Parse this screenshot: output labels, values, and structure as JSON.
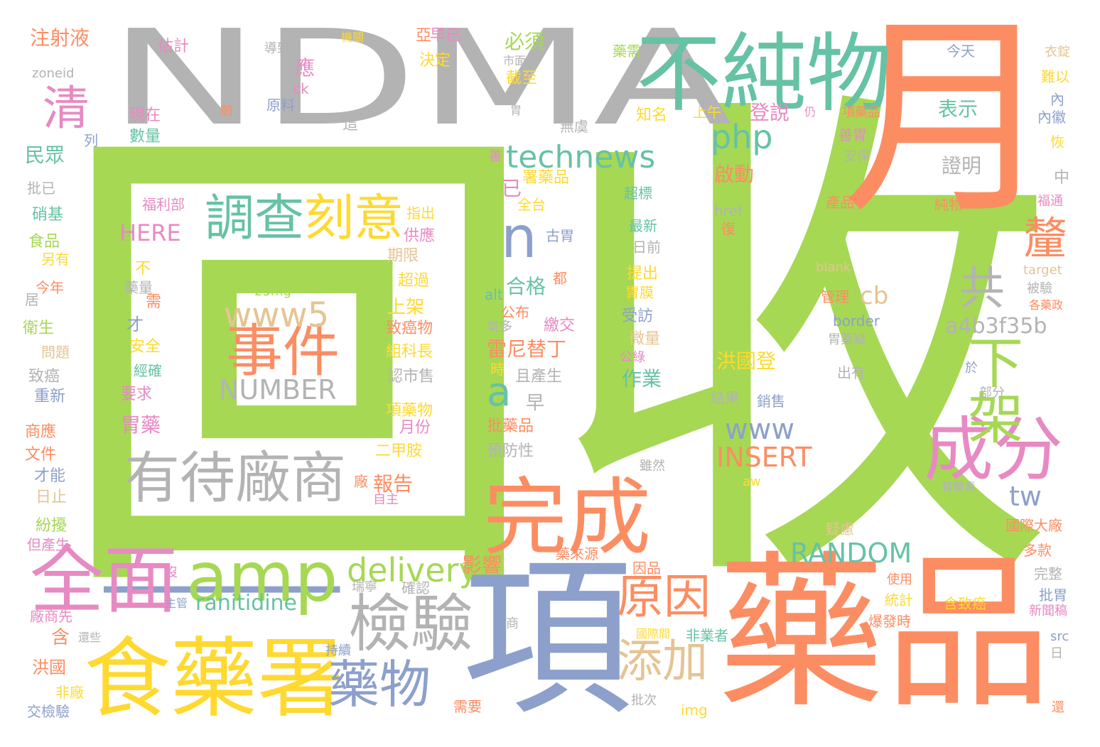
{
  "palette": {
    "green": "#a6d854",
    "gray": "#b3b3b3",
    "orange": "#fc8d62",
    "teal": "#66c2a5",
    "blue": "#8da0cb",
    "pink": "#e78ac3",
    "yellow": "#ffd92f",
    "tan": "#e5c494"
  },
  "words": [
    {
      "text": "回",
      "color": "green"
    },
    {
      "text": "收",
      "color": "green"
    },
    {
      "text": "NDMA",
      "color": "gray"
    },
    {
      "text": "月",
      "color": "orange"
    },
    {
      "text": "藥品",
      "color": "orange"
    },
    {
      "text": "項",
      "color": "blue"
    },
    {
      "text": "一",
      "color": "blue"
    },
    {
      "text": "不純物",
      "color": "teal"
    },
    {
      "text": "食藥署",
      "color": "yellow"
    },
    {
      "text": "完成",
      "color": "orange"
    },
    {
      "text": "amp",
      "color": "green"
    },
    {
      "text": "全面",
      "color": "pink"
    },
    {
      "text": "有待廠商",
      "color": "gray"
    },
    {
      "text": "成分",
      "color": "pink"
    },
    {
      "text": "檢驗",
      "color": "gray"
    },
    {
      "text": "藥物",
      "color": "blue"
    },
    {
      "text": "調查",
      "color": "teal"
    },
    {
      "text": "刻意",
      "color": "yellow"
    },
    {
      "text": "下架",
      "color": "green"
    },
    {
      "text": "事件",
      "color": "orange"
    },
    {
      "text": "www5",
      "color": "tan"
    },
    {
      "text": "technews",
      "color": "teal"
    },
    {
      "text": "n",
      "color": "blue"
    },
    {
      "text": "原因",
      "color": "orange"
    },
    {
      "text": "添加",
      "color": "tan"
    },
    {
      "text": "清",
      "color": "pink"
    },
    {
      "text": "共",
      "color": "gray"
    },
    {
      "text": "釐",
      "color": "orange"
    },
    {
      "text": "a",
      "color": "teal"
    },
    {
      "text": "delivery",
      "color": "green"
    },
    {
      "text": "php",
      "color": "teal"
    },
    {
      "text": "NUMBER",
      "color": "gray"
    },
    {
      "text": "RANDOM",
      "color": "teal"
    },
    {
      "text": "INSERT",
      "color": "orange"
    },
    {
      "text": "a4b3f35b",
      "color": "gray"
    },
    {
      "text": "www",
      "color": "blue"
    },
    {
      "text": "ranitidine",
      "color": "teal"
    },
    {
      "text": "HERE",
      "color": "pink"
    },
    {
      "text": "tw",
      "color": "blue"
    },
    {
      "text": "cb",
      "color": "tan"
    },
    {
      "text": "注射液",
      "color": "orange"
    },
    {
      "text": "雷尼替丁",
      "color": "orange"
    },
    {
      "text": "合格",
      "color": "teal"
    },
    {
      "text": "必須",
      "color": "green"
    },
    {
      "text": "登說",
      "color": "pink"
    },
    {
      "text": "啟動",
      "color": "orange"
    },
    {
      "text": "表示",
      "color": "teal"
    },
    {
      "text": "證明",
      "color": "gray"
    },
    {
      "text": "洪國登",
      "color": "yellow"
    },
    {
      "text": "影響",
      "color": "orange"
    },
    {
      "text": "作業",
      "color": "teal"
    },
    {
      "text": "報告",
      "color": "orange"
    },
    {
      "text": "胃藥",
      "color": "pink"
    },
    {
      "text": "上架",
      "color": "yellow"
    },
    {
      "text": "民眾",
      "color": "teal"
    },
    {
      "text": "估計",
      "color": "pink"
    },
    {
      "text": "zoneid",
      "color": "gray"
    },
    {
      "text": "現在",
      "color": "pink"
    },
    {
      "text": "數量",
      "color": "teal"
    },
    {
      "text": "批已",
      "color": "gray"
    },
    {
      "text": "硝基",
      "color": "teal"
    },
    {
      "text": "食品",
      "color": "green"
    },
    {
      "text": "另有",
      "color": "yellow"
    },
    {
      "text": "今年",
      "color": "orange"
    },
    {
      "text": "居",
      "color": "gray"
    },
    {
      "text": "衛生",
      "color": "green"
    },
    {
      "text": "問題",
      "color": "tan"
    },
    {
      "text": "致癌",
      "color": "gray"
    },
    {
      "text": "重新",
      "color": "blue"
    },
    {
      "text": "商應",
      "color": "orange"
    },
    {
      "text": "文件",
      "color": "orange"
    },
    {
      "text": "才能",
      "color": "blue"
    },
    {
      "text": "日止",
      "color": "tan"
    },
    {
      "text": "紛擾",
      "color": "green"
    },
    {
      "text": "但產生",
      "color": "pink"
    },
    {
      "text": "廠商先",
      "color": "pink"
    },
    {
      "text": "含",
      "color": "orange"
    },
    {
      "text": "洪國",
      "color": "orange"
    },
    {
      "text": "非廠",
      "color": "yellow"
    },
    {
      "text": "交檢驗",
      "color": "blue"
    },
    {
      "text": "列",
      "color": "blue"
    },
    {
      "text": "福利部",
      "color": "pink"
    },
    {
      "text": "導致",
      "color": "gray"
    },
    {
      "text": "應",
      "color": "pink"
    },
    {
      "text": "ck",
      "color": "pink"
    },
    {
      "text": "原料",
      "color": "blue"
    },
    {
      "text": "這",
      "color": "gray"
    },
    {
      "text": "前",
      "color": "orange"
    },
    {
      "text": "機關",
      "color": "yellow"
    },
    {
      "text": "亞",
      "color": "orange"
    },
    {
      "text": "早已",
      "color": "pink"
    },
    {
      "text": "決定",
      "color": "yellow"
    },
    {
      "text": "截至",
      "color": "yellow"
    },
    {
      "text": "無虞",
      "color": "gray"
    },
    {
      "text": "胃",
      "color": "gray"
    },
    {
      "text": "市面上",
      "color": "gray"
    },
    {
      "text": "已",
      "color": "pink"
    },
    {
      "text": "署藥品",
      "color": "yellow"
    },
    {
      "text": "全台",
      "color": "yellow"
    },
    {
      "text": "指出",
      "color": "yellow"
    },
    {
      "text": "供應",
      "color": "pink"
    },
    {
      "text": "期限",
      "color": "tan"
    },
    {
      "text": "超過",
      "color": "yellow"
    },
    {
      "text": "致癌物",
      "color": "orange"
    },
    {
      "text": "組科長",
      "color": "yellow"
    },
    {
      "text": "認市售",
      "color": "gray"
    },
    {
      "text": "項藥物",
      "color": "yellow"
    },
    {
      "text": "月份",
      "color": "pink"
    },
    {
      "text": "二甲胺",
      "color": "yellow"
    },
    {
      "text": "廠",
      "color": "orange"
    },
    {
      "text": "自主",
      "color": "pink"
    },
    {
      "text": "早",
      "color": "gray"
    },
    {
      "text": "批藥品",
      "color": "orange"
    },
    {
      "text": "預防性",
      "color": "gray"
    },
    {
      "text": "古胃",
      "color": "blue"
    },
    {
      "text": "都",
      "color": "orange"
    },
    {
      "text": "alt",
      "color": "teal"
    },
    {
      "text": "公布",
      "color": "orange"
    },
    {
      "text": "氣多",
      "color": "gray"
    },
    {
      "text": "繳交",
      "color": "pink"
    },
    {
      "text": "時",
      "color": "yellow"
    },
    {
      "text": "且產生",
      "color": "gray"
    },
    {
      "text": "不",
      "color": "yellow"
    },
    {
      "text": "藥量",
      "color": "gray"
    },
    {
      "text": "需",
      "color": "orange"
    },
    {
      "text": "才",
      "color": "blue"
    },
    {
      "text": "安全",
      "color": "yellow"
    },
    {
      "text": "經確",
      "color": "teal"
    },
    {
      "text": "要求",
      "color": "pink"
    },
    {
      "text": "25mg",
      "color": "green"
    },
    {
      "text": "沒",
      "color": "pink"
    },
    {
      "text": "瑞寧",
      "color": "gray"
    },
    {
      "text": "確認",
      "color": "gray"
    },
    {
      "text": "主管",
      "color": "blue"
    },
    {
      "text": "還些",
      "color": "gray"
    },
    {
      "text": "持續",
      "color": "blue"
    },
    {
      "text": "需要",
      "color": "orange"
    },
    {
      "text": "商",
      "color": "gray"
    },
    {
      "text": "藥來源",
      "color": "orange"
    },
    {
      "text": "因品",
      "color": "orange"
    },
    {
      "text": "國際間",
      "color": "yellow"
    },
    {
      "text": "非業者",
      "color": "teal"
    },
    {
      "text": "批次",
      "color": "gray"
    },
    {
      "text": "img",
      "color": "yellow"
    },
    {
      "text": "雖然",
      "color": "gray"
    },
    {
      "text": "aw",
      "color": "yellow"
    },
    {
      "text": "藥需",
      "color": "green"
    },
    {
      "text": "知名",
      "color": "yellow"
    },
    {
      "text": "上午",
      "color": "yellow"
    },
    {
      "text": "超標",
      "color": "teal"
    },
    {
      "text": "最新",
      "color": "teal"
    },
    {
      "text": "日前",
      "color": "gray"
    },
    {
      "text": "提出",
      "color": "yellow"
    },
    {
      "text": "胃膜",
      "color": "yellow"
    },
    {
      "text": "受訪",
      "color": "blue"
    },
    {
      "text": "微量",
      "color": "tan"
    },
    {
      "text": "公綠",
      "color": "pink"
    },
    {
      "text": "善",
      "color": "pink"
    },
    {
      "text": "今天",
      "color": "blue"
    },
    {
      "text": "仍",
      "color": "pink"
    },
    {
      "text": "項藥品",
      "color": "orange"
    },
    {
      "text": "善胃",
      "color": "pink"
    },
    {
      "text": "安保",
      "color": "gray"
    },
    {
      "text": "產品",
      "color": "orange"
    },
    {
      "text": "href",
      "color": "gray"
    },
    {
      "text": "復",
      "color": "orange"
    },
    {
      "text": "blank",
      "color": "tan"
    },
    {
      "text": "管理",
      "color": "orange"
    },
    {
      "text": "border",
      "color": "blue"
    },
    {
      "text": "胃藥疑",
      "color": "gray"
    },
    {
      "text": "出有",
      "color": "gray"
    },
    {
      "text": "結果",
      "color": "gray"
    },
    {
      "text": "銷售",
      "color": "blue"
    },
    {
      "text": "部分",
      "color": "gray"
    },
    {
      "text": "於",
      "color": "blue"
    },
    {
      "text": "疑慮",
      "color": "tan"
    },
    {
      "text": "使用",
      "color": "orange"
    },
    {
      "text": "統計",
      "color": "yellow"
    },
    {
      "text": "爆發時",
      "color": "orange"
    },
    {
      "text": "含致癌",
      "color": "yellow"
    },
    {
      "text": "衣錠",
      "color": "tan"
    },
    {
      "text": "難以",
      "color": "yellow"
    },
    {
      "text": "內",
      "color": "blue"
    },
    {
      "text": "內徽",
      "color": "blue"
    },
    {
      "text": "恢",
      "color": "yellow"
    },
    {
      "text": "中",
      "color": "gray"
    },
    {
      "text": "純物",
      "color": "orange"
    },
    {
      "text": "福通",
      "color": "pink"
    },
    {
      "text": "target",
      "color": "tan"
    },
    {
      "text": "被驗",
      "color": "gray"
    },
    {
      "text": "各藥政",
      "color": "orange"
    },
    {
      "text": "國際大廠",
      "color": "orange"
    },
    {
      "text": "多款",
      "color": "orange"
    },
    {
      "text": "完整",
      "color": "gray"
    },
    {
      "text": "批胃",
      "color": "blue"
    },
    {
      "text": "新聞稿",
      "color": "pink"
    },
    {
      "text": "src",
      "color": "blue"
    },
    {
      "text": "日",
      "color": "gray"
    },
    {
      "text": "還",
      "color": "orange"
    },
    {
      "text": "暮蘭素",
      "color": "gray"
    }
  ]
}
